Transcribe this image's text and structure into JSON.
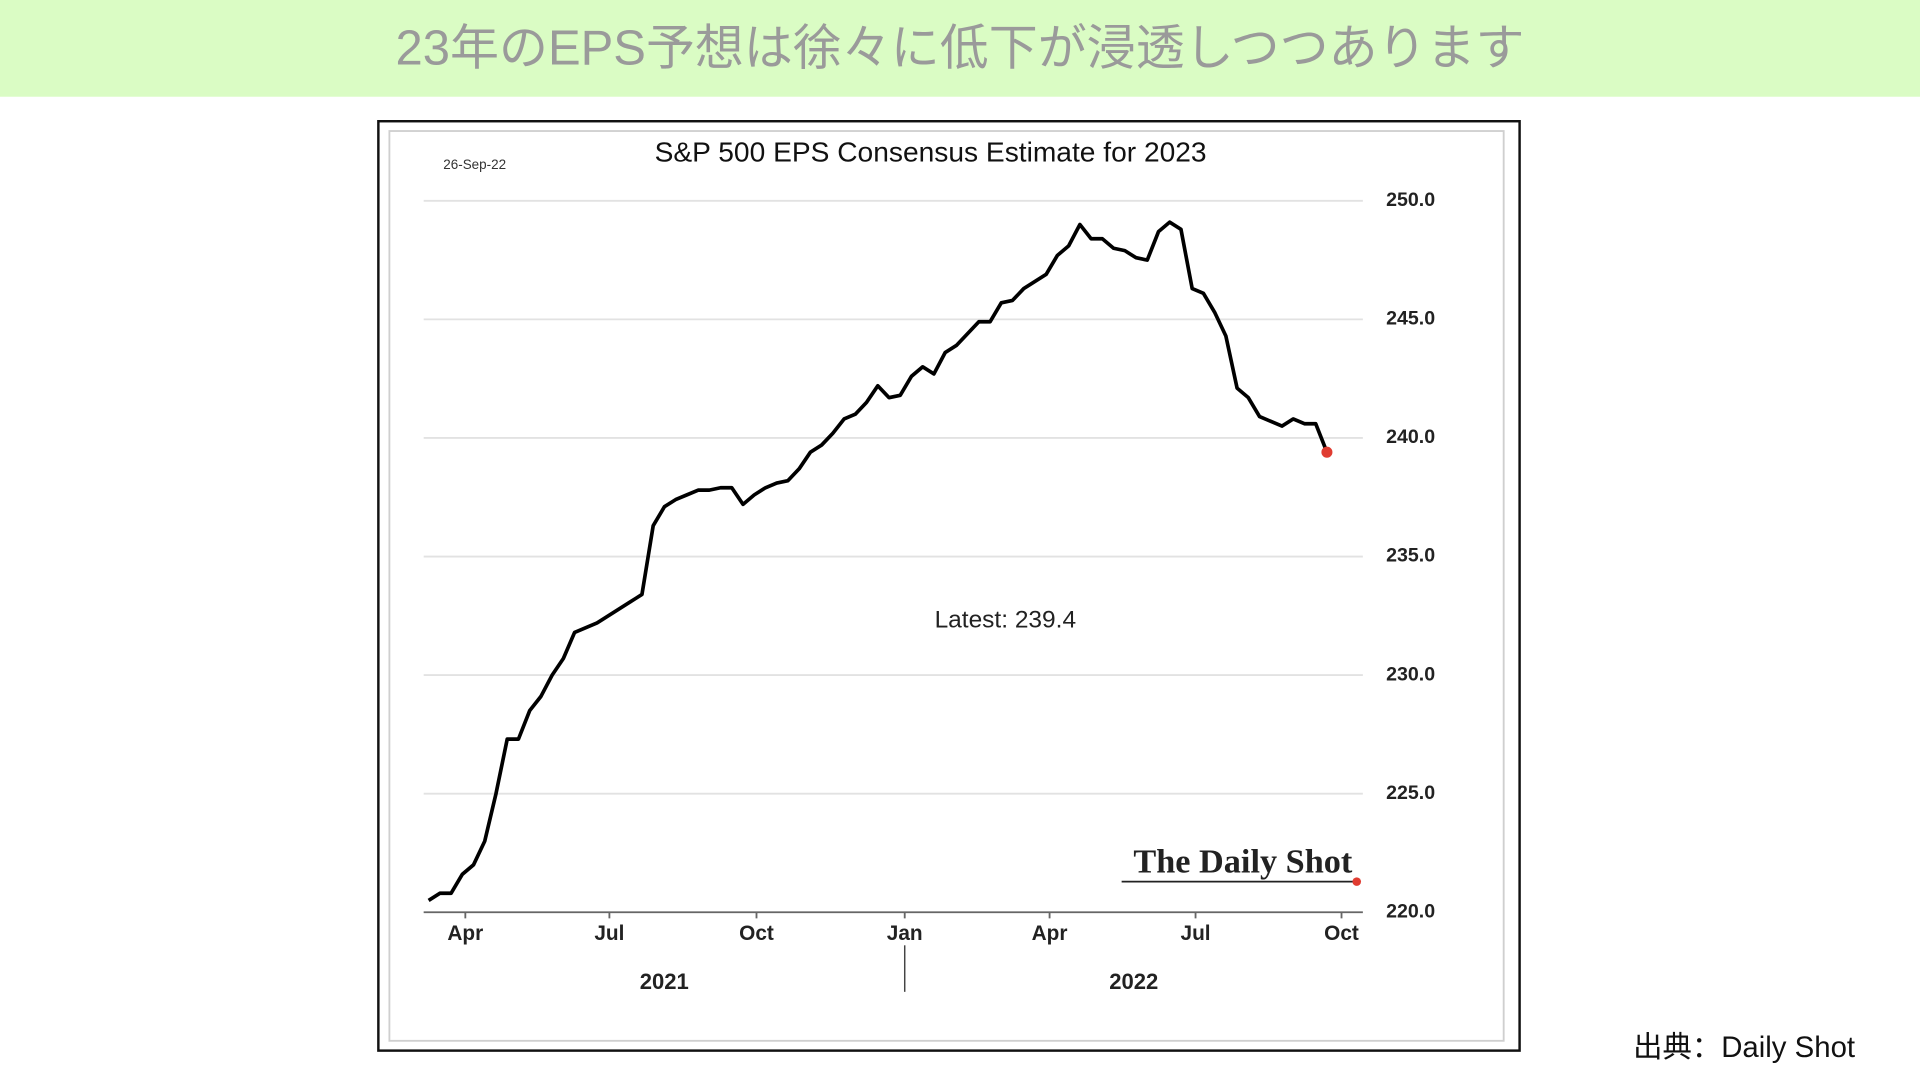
{
  "heading": "23年のEPS予想は徐々に低下が浸透しつつあります",
  "source": "出典：Daily Shot",
  "chart_data": {
    "type": "line",
    "title": "S&P 500 EPS Consensus Estimate for 2023",
    "date_label": "26-Sep-22",
    "annotation": "Latest:  239.4",
    "watermark": "The Daily Shot",
    "color": "#000000",
    "latest_marker_color": "#e03c31",
    "grid": true,
    "values": [
      220.5,
      220.8,
      220.8,
      221.6,
      222.0,
      223.0,
      225.0,
      227.3,
      227.3,
      228.5,
      229.1,
      230.0,
      230.7,
      231.8,
      232.0,
      232.2,
      232.5,
      232.8,
      233.1,
      233.4,
      236.3,
      237.1,
      237.4,
      237.6,
      237.8,
      237.8,
      237.9,
      237.9,
      237.2,
      237.6,
      237.9,
      238.1,
      238.2,
      238.7,
      239.4,
      239.7,
      240.2,
      240.8,
      241.0,
      241.5,
      242.2,
      241.7,
      241.8,
      242.6,
      243.0,
      242.7,
      243.6,
      243.9,
      244.4,
      244.9,
      244.9,
      245.7,
      245.8,
      246.3,
      246.6,
      246.9,
      247.7,
      248.1,
      249.0,
      248.4,
      248.4,
      248.0,
      247.9,
      247.6,
      247.5,
      248.7,
      249.1,
      248.8,
      246.3,
      246.1,
      245.3,
      244.3,
      242.1,
      241.7,
      240.9,
      240.7,
      240.5,
      240.8,
      240.6,
      240.6,
      239.4
    ],
    "xlim": [
      -0.44,
      83.2
    ],
    "xticks": [
      {
        "value": 3.27,
        "label": "Apr"
      },
      {
        "value": 16.1,
        "label": "Jul"
      },
      {
        "value": 29.2,
        "label": "Oct"
      },
      {
        "value": 42.4,
        "label": "Jan"
      },
      {
        "value": 55.3,
        "label": "Apr"
      },
      {
        "value": 68.3,
        "label": "Jul"
      },
      {
        "value": 81.3,
        "label": "Oct"
      }
    ],
    "year_labels": [
      "2021",
      "2022"
    ],
    "ylim": [
      220,
      250
    ],
    "yticks": [
      {
        "value": 220,
        "label": "220.0"
      },
      {
        "value": 225,
        "label": "225.0"
      },
      {
        "value": 230,
        "label": "230.0"
      },
      {
        "value": 235,
        "label": "235.0"
      },
      {
        "value": 240,
        "label": "240.0"
      },
      {
        "value": 245,
        "label": "245.0"
      },
      {
        "value": 250,
        "label": "250.0"
      }
    ]
  }
}
